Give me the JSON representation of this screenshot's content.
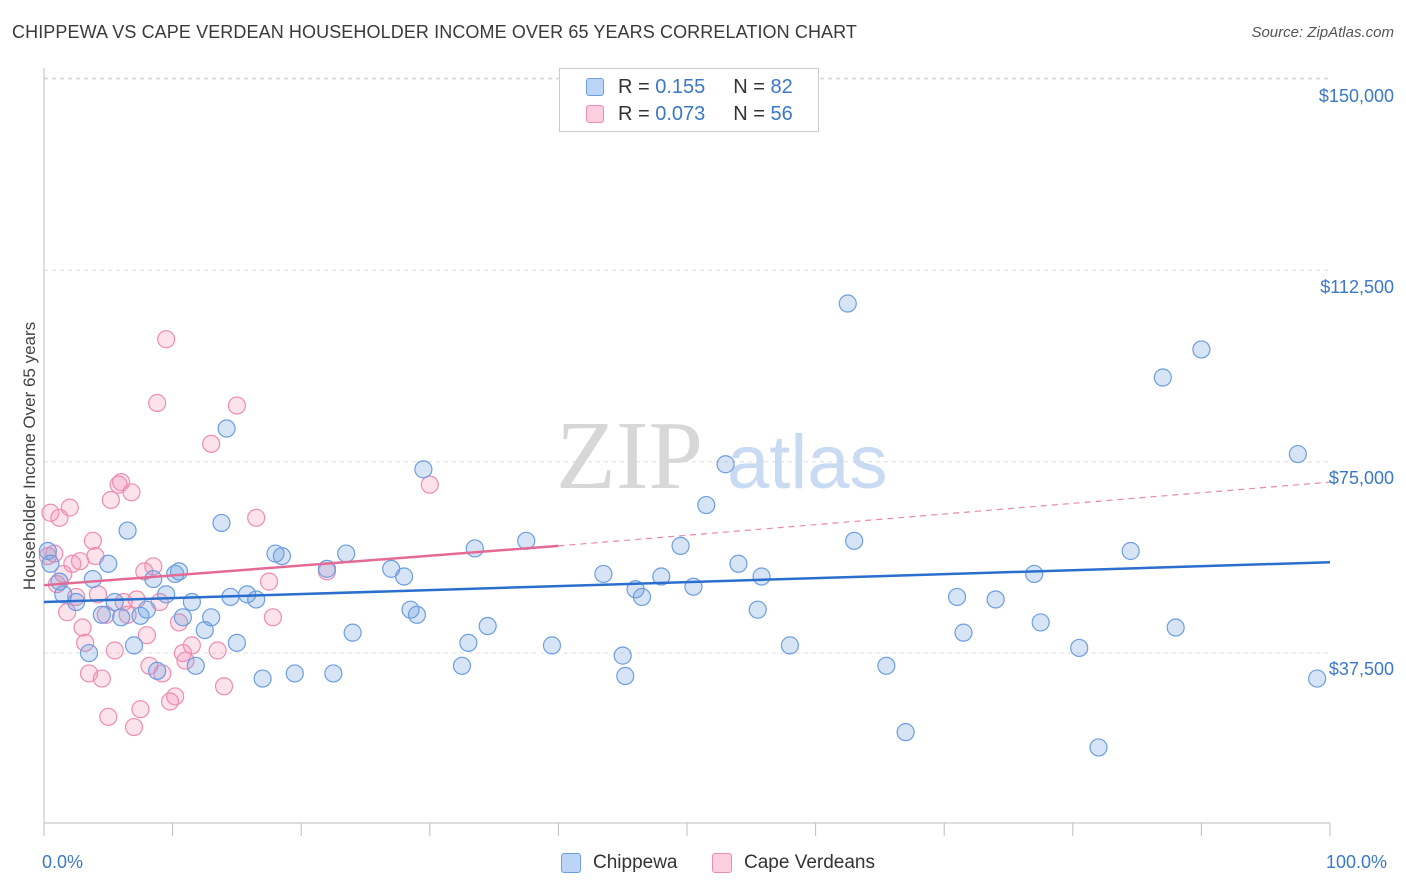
{
  "title": "CHIPPEWA VS CAPE VERDEAN HOUSEHOLDER INCOME OVER 65 YEARS CORRELATION CHART",
  "source": "Source: ZipAtlas.com",
  "watermark": {
    "zip": "ZIP",
    "atlas": "atlas"
  },
  "legend": {
    "r_label": "R =",
    "n_label": "N =",
    "rows": [
      {
        "r": "0.155",
        "n": "82"
      },
      {
        "r": "0.073",
        "n": "56"
      }
    ]
  },
  "chart_data": {
    "type": "scatter",
    "title": "CHIPPEWA VS CAPE VERDEAN HOUSEHOLDER INCOME OVER 65 YEARS CORRELATION CHART",
    "xlabel": "",
    "ylabel": "Householder Income Over 65 years",
    "xlim": [
      0,
      100
    ],
    "ylim": [
      0,
      155000
    ],
    "x_tick_labels": [
      "0.0%",
      "100.0%"
    ],
    "y_ticks": [
      37500,
      75000,
      112500,
      150000
    ],
    "y_tick_labels": [
      "$37,500",
      "$75,000",
      "$112,500",
      "$150,000"
    ],
    "grid": true,
    "legend_position": "top-center",
    "colors": {
      "chippewa": "#6c9ee0",
      "cape_verdeans": "#f08cb0",
      "chippewa_line": "#2a6fce",
      "cape_line": "#e46a95"
    },
    "series": [
      {
        "name": "Chippewa",
        "trend": {
          "x0": 0,
          "y0": 47500,
          "x1": 100,
          "y1": 55300
        },
        "points": [
          [
            0.3,
            57500
          ],
          [
            0.5,
            55000
          ],
          [
            1.2,
            51500
          ],
          [
            1.5,
            49000
          ],
          [
            2.5,
            47500
          ],
          [
            3.5,
            37500
          ],
          [
            3.8,
            52000
          ],
          [
            4.5,
            45000
          ],
          [
            5.0,
            55000
          ],
          [
            5.5,
            47500
          ],
          [
            6.0,
            44500
          ],
          [
            6.5,
            61500
          ],
          [
            7.0,
            39000
          ],
          [
            7.5,
            44800
          ],
          [
            8.0,
            46000
          ],
          [
            8.5,
            52000
          ],
          [
            8.8,
            34000
          ],
          [
            9.5,
            49000
          ],
          [
            10.2,
            53000
          ],
          [
            10.5,
            53500
          ],
          [
            10.8,
            44500
          ],
          [
            11.5,
            47500
          ],
          [
            11.8,
            35000
          ],
          [
            12.5,
            42000
          ],
          [
            13.0,
            44500
          ],
          [
            13.8,
            63000
          ],
          [
            14.2,
            81500
          ],
          [
            14.5,
            48500
          ],
          [
            15.0,
            39500
          ],
          [
            15.8,
            49000
          ],
          [
            16.5,
            48000
          ],
          [
            17.0,
            32500
          ],
          [
            18.0,
            57000
          ],
          [
            18.5,
            56500
          ],
          [
            19.5,
            33500
          ],
          [
            22.0,
            54000
          ],
          [
            22.5,
            33500
          ],
          [
            23.5,
            57000
          ],
          [
            24.0,
            41500
          ],
          [
            27.0,
            54000
          ],
          [
            28.0,
            52500
          ],
          [
            28.5,
            46000
          ],
          [
            29.0,
            45000
          ],
          [
            29.5,
            73500
          ],
          [
            32.5,
            35000
          ],
          [
            33.0,
            39500
          ],
          [
            33.5,
            58000
          ],
          [
            34.5,
            42800
          ],
          [
            37.5,
            59500
          ],
          [
            39.5,
            39000
          ],
          [
            43.5,
            53000
          ],
          [
            45.0,
            37000
          ],
          [
            45.2,
            33000
          ],
          [
            46.0,
            50000
          ],
          [
            46.5,
            48500
          ],
          [
            48.0,
            52500
          ],
          [
            49.5,
            58500
          ],
          [
            50.5,
            50500
          ],
          [
            51.5,
            66500
          ],
          [
            53.0,
            74500
          ],
          [
            54.0,
            55000
          ],
          [
            55.5,
            46000
          ],
          [
            55.8,
            52500
          ],
          [
            58.0,
            39000
          ],
          [
            62.5,
            106000
          ],
          [
            63.0,
            59500
          ],
          [
            65.5,
            35000
          ],
          [
            67.0,
            22000
          ],
          [
            71.0,
            48500
          ],
          [
            71.5,
            41500
          ],
          [
            74.0,
            48000
          ],
          [
            77.0,
            53000
          ],
          [
            77.5,
            43500
          ],
          [
            80.5,
            38500
          ],
          [
            82.0,
            19000
          ],
          [
            84.5,
            57500
          ],
          [
            87.0,
            91500
          ],
          [
            88.0,
            42500
          ],
          [
            90.0,
            97000
          ],
          [
            97.5,
            76500
          ],
          [
            99.0,
            32500
          ]
        ]
      },
      {
        "name": "Cape Verdeans",
        "trend": {
          "x0": 0,
          "y0": 50800,
          "x1": 40,
          "y1": 58500,
          "x_dash_end": 100,
          "y_dash_end": 71000
        },
        "points": [
          [
            0.3,
            56500
          ],
          [
            0.5,
            65000
          ],
          [
            0.8,
            57000
          ],
          [
            1.0,
            51000
          ],
          [
            1.2,
            64000
          ],
          [
            1.5,
            53000
          ],
          [
            1.8,
            45500
          ],
          [
            2.0,
            66000
          ],
          [
            2.2,
            55000
          ],
          [
            2.5,
            48500
          ],
          [
            2.8,
            55500
          ],
          [
            3.0,
            42500
          ],
          [
            3.2,
            39500
          ],
          [
            3.5,
            33500
          ],
          [
            3.8,
            59500
          ],
          [
            4.0,
            56500
          ],
          [
            4.2,
            49000
          ],
          [
            4.5,
            32500
          ],
          [
            4.8,
            45000
          ],
          [
            5.0,
            25000
          ],
          [
            5.2,
            67500
          ],
          [
            5.5,
            38000
          ],
          [
            5.8,
            70500
          ],
          [
            6.0,
            71000
          ],
          [
            6.2,
            47500
          ],
          [
            6.5,
            45000
          ],
          [
            6.8,
            69000
          ],
          [
            7.0,
            23000
          ],
          [
            7.2,
            48000
          ],
          [
            7.5,
            26500
          ],
          [
            7.8,
            53500
          ],
          [
            8.0,
            41000
          ],
          [
            8.2,
            35000
          ],
          [
            8.5,
            54500
          ],
          [
            8.8,
            86500
          ],
          [
            9.0,
            47500
          ],
          [
            9.2,
            33500
          ],
          [
            9.5,
            99000
          ],
          [
            9.8,
            28000
          ],
          [
            10.2,
            29000
          ],
          [
            10.5,
            43500
          ],
          [
            10.8,
            37500
          ],
          [
            11.0,
            36000
          ],
          [
            11.5,
            39000
          ],
          [
            13.0,
            78500
          ],
          [
            13.5,
            38000
          ],
          [
            14.0,
            31000
          ],
          [
            15.0,
            86000
          ],
          [
            16.5,
            64000
          ],
          [
            17.5,
            51500
          ],
          [
            17.8,
            44500
          ],
          [
            22.0,
            53500
          ],
          [
            30.0,
            70500
          ]
        ]
      }
    ]
  }
}
